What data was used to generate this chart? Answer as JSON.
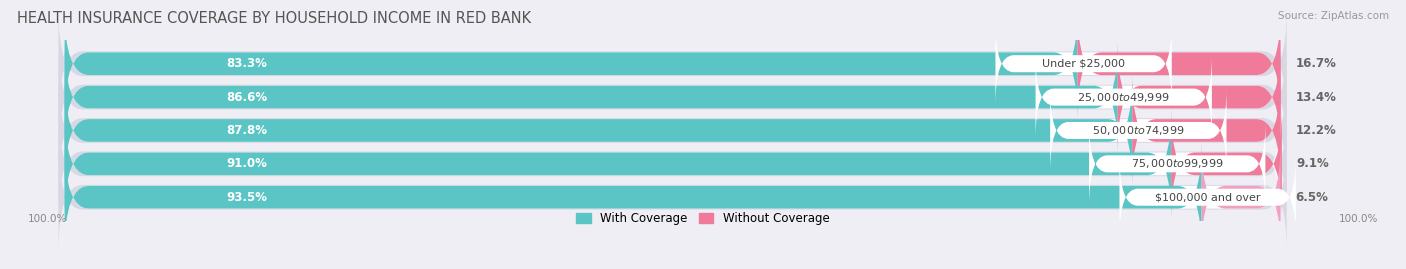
{
  "title": "HEALTH INSURANCE COVERAGE BY HOUSEHOLD INCOME IN RED BANK",
  "source": "Source: ZipAtlas.com",
  "categories": [
    "Under $25,000",
    "$25,000 to $49,999",
    "$50,000 to $74,999",
    "$75,000 to $99,999",
    "$100,000 and over"
  ],
  "with_coverage": [
    83.3,
    86.6,
    87.8,
    91.0,
    93.5
  ],
  "without_coverage": [
    16.7,
    13.4,
    12.2,
    9.1,
    6.5
  ],
  "color_with": "#5bc4c4",
  "color_without": "#f07a9a",
  "color_without_last": "#f0a0c0",
  "bar_height": 0.68,
  "background_color": "#eeeef4",
  "bar_background": "#ffffff",
  "title_fontsize": 10.5,
  "label_fontsize": 8.5,
  "cat_fontsize": 8.0,
  "legend_fontsize": 8.5,
  "source_fontsize": 7.5
}
